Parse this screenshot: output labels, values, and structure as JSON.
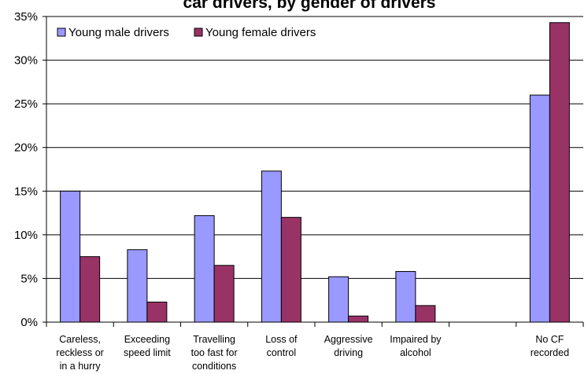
{
  "chart_data": {
    "type": "bar",
    "title": "car drivers, by gender of drivers",
    "categories": [
      [
        "Careless,",
        "reckless or",
        "in a hurry"
      ],
      [
        "Exceeding",
        "speed limit"
      ],
      [
        "Travelling",
        "too fast for",
        "conditions"
      ],
      [
        "Loss of",
        "control"
      ],
      [
        "Aggressive",
        "driving"
      ],
      [
        "Impaired by",
        "alcohol"
      ],
      [],
      [
        "No CF",
        "recorded"
      ]
    ],
    "series": [
      {
        "name": "Young male drivers",
        "color": "#9999ff",
        "values": [
          15.0,
          8.3,
          12.2,
          17.3,
          5.2,
          5.8,
          null,
          26.0
        ]
      },
      {
        "name": "Young female drivers",
        "color": "#993366",
        "values": [
          7.5,
          2.3,
          6.5,
          12.0,
          0.7,
          1.9,
          null,
          34.3
        ]
      }
    ],
    "ylim": [
      0,
      35
    ],
    "yticks": [
      "0%",
      "5%",
      "10%",
      "15%",
      "20%",
      "25%",
      "30%",
      "35%"
    ],
    "legend_position": "top-left"
  }
}
